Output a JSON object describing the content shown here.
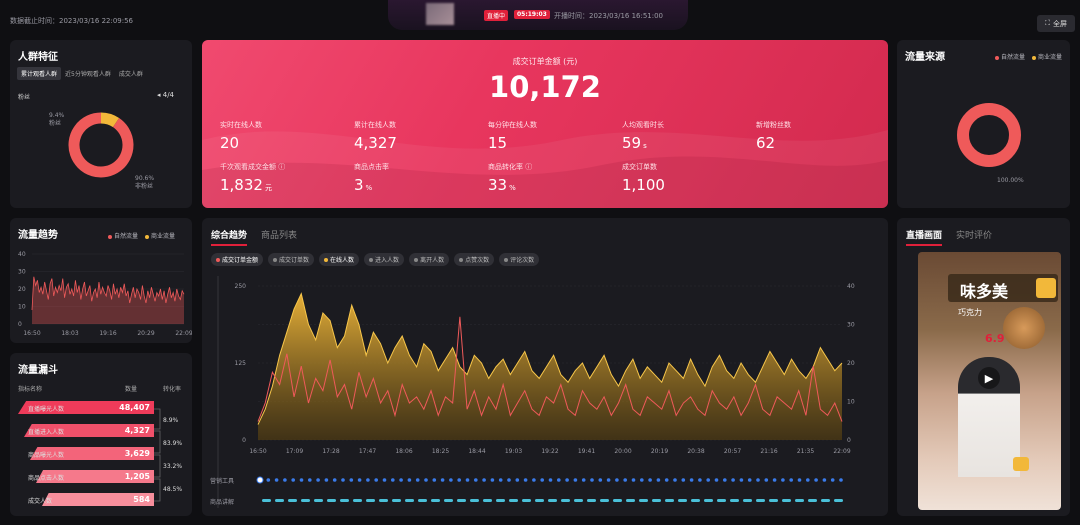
{
  "topbar": {
    "data_stat_time": "数据截止时间：2023/03/16 22:09:56",
    "live_badge": "直播中",
    "live_duration": "05:19:03",
    "start_time": "开播时间：2023/03/16 16:51:00",
    "fullscreen_label": "全屏"
  },
  "audience": {
    "title": "人群特征",
    "tabs": [
      "累计观看人群",
      "近5分钟观看人群",
      "成交人群"
    ],
    "subtitle": "粉丝",
    "pager": "4/4",
    "chart_data": {
      "type": "pie",
      "categories": [
        "粉丝",
        "非粉丝"
      ],
      "values": [
        9.4,
        90.6
      ],
      "labels": [
        "9.4%",
        "90.6%"
      ],
      "colors": [
        "#f2b83a",
        "#ef5a5a"
      ]
    }
  },
  "kpi": {
    "headline_label": "成交订单金额 (元)",
    "headline_value": "10,172",
    "items": [
      {
        "label": "实时在线人数",
        "value": "20",
        "unit": ""
      },
      {
        "label": "累计在线人数",
        "value": "4,327",
        "unit": ""
      },
      {
        "label": "每分钟在线人数",
        "value": "15",
        "unit": ""
      },
      {
        "label": "人均观看时长",
        "value": "59",
        "unit": "s"
      },
      {
        "label": "新增粉丝数",
        "value": "62",
        "unit": ""
      },
      {
        "label": "千次观看成交金额 ⓘ",
        "value": "1,832",
        "unit": "元"
      },
      {
        "label": "商品点击率",
        "value": "3",
        "unit": "%"
      },
      {
        "label": "商品转化率 ⓘ",
        "value": "33",
        "unit": "%"
      },
      {
        "label": "成交订单数",
        "value": "1,100",
        "unit": ""
      }
    ]
  },
  "traffic_source": {
    "title": "流量来源",
    "legend": [
      "自然流量",
      "商业流量"
    ],
    "colors": [
      "#ef5a5a",
      "#f2b83a"
    ],
    "chart_data": {
      "type": "pie",
      "categories": [
        "自然流量",
        "商业流量"
      ],
      "values": [
        100,
        0
      ],
      "labels": [
        "100.00%"
      ]
    }
  },
  "traffic_trend": {
    "title": "流量趋势",
    "legend": [
      "自然流量",
      "商业流量"
    ],
    "chart_data": {
      "type": "line",
      "x_ticks": [
        "16:50",
        "18:03",
        "19:16",
        "20:29",
        "22:09"
      ],
      "y_ticks": [
        "0",
        "10",
        "20",
        "30",
        "40"
      ],
      "ylim": [
        0,
        40
      ],
      "series": [
        {
          "name": "自然流量",
          "values": [
            8,
            27,
            22,
            25,
            18,
            21,
            17,
            24,
            19,
            14,
            23,
            26,
            16,
            21,
            18,
            22,
            19,
            26,
            15,
            21,
            23,
            17,
            20,
            16,
            25,
            18,
            22,
            14,
            20,
            24,
            16,
            19,
            22,
            13,
            18,
            20,
            15,
            24,
            17,
            21,
            18,
            16,
            22,
            19,
            14,
            23,
            17,
            20,
            15,
            21,
            18,
            23,
            16,
            19,
            12,
            17,
            21,
            15,
            20,
            18,
            14,
            22,
            16,
            12,
            19,
            15,
            21,
            17,
            13,
            18,
            16,
            20,
            14,
            19,
            12,
            17,
            21,
            15,
            18,
            13,
            20,
            16,
            14,
            19,
            17
          ]
        }
      ]
    }
  },
  "funnel": {
    "title": "流量漏斗",
    "col_name": "指标名称",
    "col_count": "数量",
    "col_conv": "转化率",
    "rows": [
      {
        "name": "直播曝光人数",
        "value": "48,407"
      },
      {
        "name": "直播进入人数",
        "value": "4,327"
      },
      {
        "name": "商品曝光人数",
        "value": "3,629"
      },
      {
        "name": "商品点击人数",
        "value": "1,205"
      },
      {
        "name": "成交人数",
        "value": "584"
      }
    ],
    "conversions": [
      "8.9%",
      "83.9%",
      "33.2%",
      "48.5%"
    ]
  },
  "main": {
    "tabs": [
      "综合趋势",
      "商品列表"
    ],
    "chips": [
      {
        "label": "成交订单金额",
        "color": "#ef5a5a",
        "active": true
      },
      {
        "label": "成交订单数",
        "color": "#888888",
        "active": false
      },
      {
        "label": "在线人数",
        "color": "#f2b83a",
        "active": true
      },
      {
        "label": "进入人数",
        "color": "#888888",
        "active": false
      },
      {
        "label": "离开人数",
        "color": "#888888",
        "active": false
      },
      {
        "label": "点赞次数",
        "color": "#888888",
        "active": false
      },
      {
        "label": "评论次数",
        "color": "#888888",
        "active": false
      }
    ],
    "track_labels": [
      "营销工具",
      "商品讲解"
    ],
    "chart_data": {
      "type": "area",
      "x_ticks": [
        "16:50",
        "17:09",
        "17:28",
        "17:47",
        "18:06",
        "18:25",
        "18:44",
        "19:03",
        "19:22",
        "19:41",
        "20:00",
        "20:19",
        "20:38",
        "20:57",
        "21:16",
        "21:35",
        "22:09"
      ],
      "y_left_ticks": [
        "0",
        "125",
        "250"
      ],
      "y_right_ticks": [
        "0",
        "10",
        "20",
        "30",
        "40"
      ],
      "ylim_left": [
        0,
        250
      ],
      "ylim_right": [
        0,
        40
      ],
      "series": [
        {
          "name": "在线人数",
          "axis": "right",
          "values": [
            4,
            8,
            14,
            22,
            28,
            34,
            38,
            30,
            26,
            33,
            31,
            24,
            27,
            35,
            30,
            22,
            28,
            25,
            20,
            24,
            27,
            22,
            19,
            25,
            23,
            18,
            21,
            24,
            19,
            17,
            22,
            20,
            16,
            19,
            21,
            17,
            20,
            23,
            18,
            16,
            19,
            22,
            17,
            15,
            18,
            20,
            16,
            19,
            22,
            17,
            14,
            18,
            21,
            16,
            19,
            17,
            15,
            20,
            18,
            16,
            21,
            17,
            14,
            19,
            22,
            18,
            16,
            20,
            17,
            15,
            19,
            23,
            20,
            17,
            21,
            18,
            16,
            19,
            24,
            21,
            18,
            20
          ]
        },
        {
          "name": "成交订单金额",
          "axis": "left",
          "values": [
            30,
            60,
            110,
            90,
            140,
            70,
            120,
            60,
            100,
            80,
            130,
            70,
            90,
            50,
            110,
            70,
            100,
            60,
            80,
            40,
            90,
            60,
            70,
            50,
            80,
            40,
            70,
            60,
            200,
            50,
            80,
            40,
            70,
            50,
            90,
            40,
            60,
            80,
            50,
            40,
            70,
            60,
            90,
            50,
            40,
            80,
            60,
            50,
            70,
            40,
            60,
            90,
            50,
            40,
            70,
            60,
            50,
            80,
            40,
            60,
            70,
            50,
            40,
            80,
            60,
            50,
            70,
            40,
            60,
            90,
            50,
            40,
            70,
            60,
            50,
            80,
            40,
            120,
            50,
            40,
            60,
            30
          ]
        }
      ]
    }
  },
  "live": {
    "tabs": [
      "直播画面",
      "实时评价"
    ],
    "overlay_title": "味多美",
    "overlay_sub": "巧克力",
    "overlay_price": "6.9"
  }
}
